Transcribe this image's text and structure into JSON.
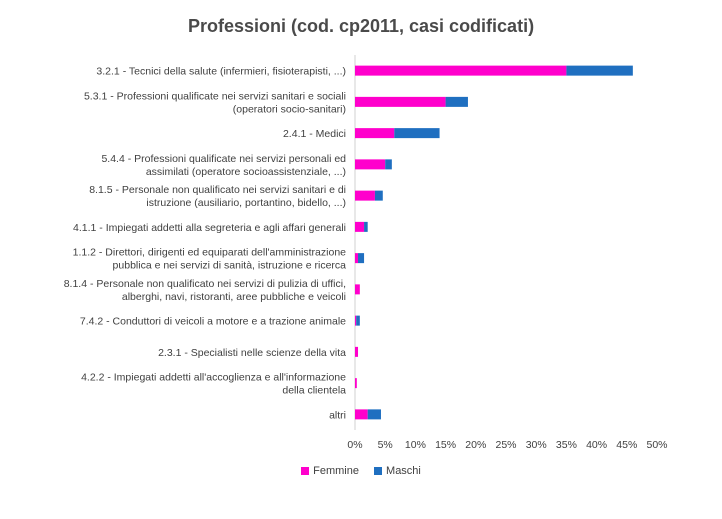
{
  "chart_data": {
    "type": "bar",
    "orientation": "horizontal",
    "stacked": true,
    "title": "Professioni (cod. cp2011, casi codificati)",
    "categories": [
      [
        "3.2.1 - Tecnici della salute (infermieri, fisioterapisti, ...)"
      ],
      [
        "5.3.1 - Professioni qualificate nei servizi sanitari e sociali",
        "(operatori socio-sanitari)"
      ],
      [
        "2.4.1 - Medici"
      ],
      [
        "5.4.4 - Professioni qualificate nei servizi personali ed",
        "assimilati (operatore socioassistenziale, ...)"
      ],
      [
        "8.1.5 - Personale non qualificato nei servizi  sanitari e di",
        "istruzione (ausiliario, portantino, bidello, ...)"
      ],
      [
        "4.1.1 - Impiegati addetti alla segreteria e agli affari generali"
      ],
      [
        "1.1.2 - Direttori, dirigenti ed equiparati dell'amministrazione",
        "pubblica e nei servizi di sanità, istruzione e ricerca"
      ],
      [
        "8.1.4 - Personale non qualificato nei servizi di pulizia di uffici,",
        "alberghi, navi, ristoranti, aree pubbliche e veicoli"
      ],
      [
        "7.4.2 - Conduttori di veicoli a motore e a trazione animale"
      ],
      [
        "2.3.1 - Specialisti nelle scienze della vita"
      ],
      [
        "4.2.2 - Impiegati addetti all'accoglienza e all'informazione",
        "della clientela"
      ],
      [
        "altri"
      ]
    ],
    "series": [
      {
        "name": "Femmine",
        "color": "#ff00cc",
        "values": [
          35.0,
          15.0,
          6.5,
          5.0,
          3.3,
          1.5,
          0.5,
          0.8,
          0.2,
          0.5,
          0.3,
          2.1
        ]
      },
      {
        "name": "Maschi",
        "color": "#1f6fc0",
        "values": [
          11.0,
          3.7,
          7.5,
          1.1,
          1.3,
          0.6,
          1.0,
          0.0,
          0.6,
          0.0,
          0.0,
          2.2
        ]
      }
    ],
    "xlim": [
      0,
      50
    ],
    "xticks": [
      "0%",
      "5%",
      "10%",
      "15%",
      "20%",
      "25%",
      "30%",
      "35%",
      "40%",
      "45%",
      "50%"
    ],
    "legend_position": "bottom",
    "grid": false
  }
}
